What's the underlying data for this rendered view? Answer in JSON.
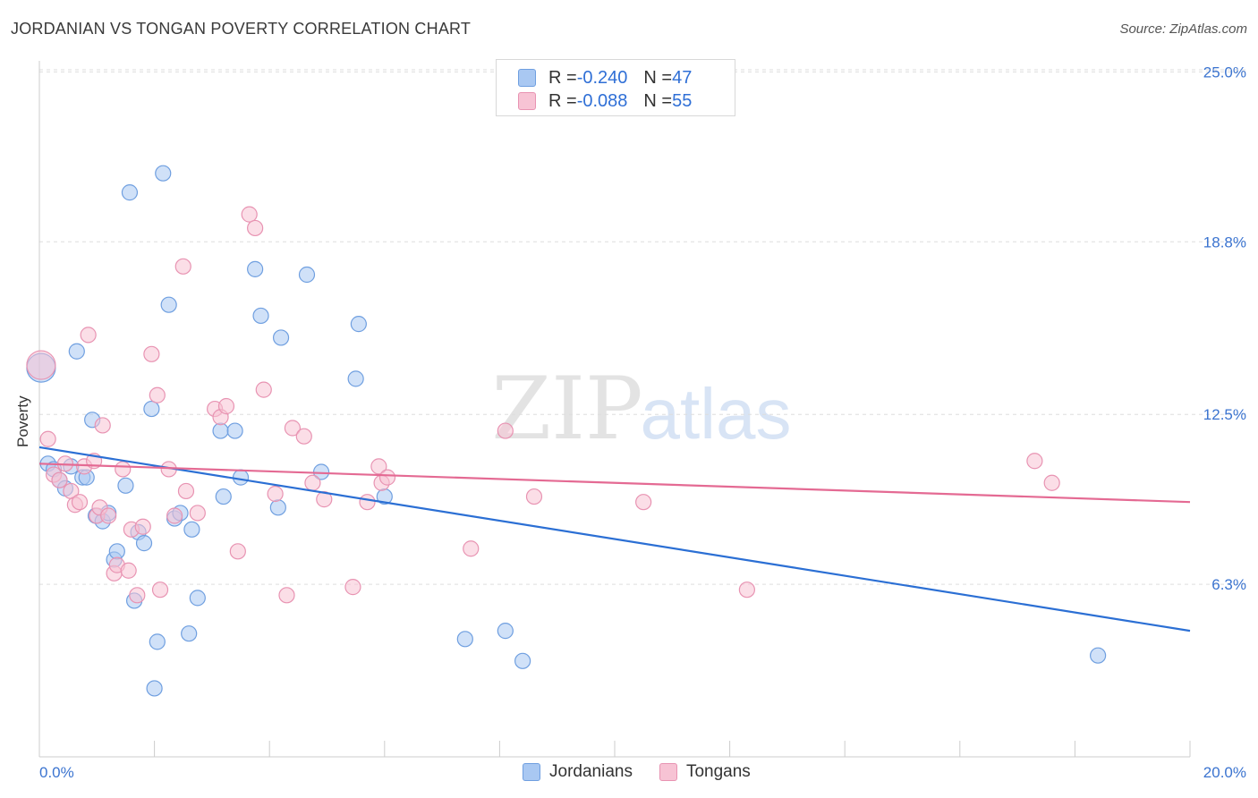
{
  "title": "JORDANIAN VS TONGAN POVERTY CORRELATION CHART",
  "source": "Source: ZipAtlas.com",
  "colors": {
    "jordanians_fill": "#a9c8f2",
    "jordanians_stroke": "#6f9fe0",
    "jordanians_line": "#2b6fd4",
    "tongans_fill": "#f7c3d4",
    "tongans_stroke": "#e893b2",
    "tongans_line": "#e46a93",
    "tick_label": "#3b74d0",
    "grid": "#dddddd"
  },
  "legend_top": {
    "rows": [
      {
        "r_label": "R = ",
        "r_value": "-0.240",
        "n_label": "N = ",
        "n_value": "47"
      },
      {
        "r_label": "R = ",
        "r_value": "-0.088",
        "n_label": "N = ",
        "n_value": "55"
      }
    ]
  },
  "chart_data": {
    "type": "scatter",
    "title": "JORDANIAN VS TONGAN POVERTY CORRELATION CHART",
    "xlabel": "",
    "ylabel": "Poverty",
    "xlim": [
      0,
      20
    ],
    "ylim": [
      0,
      25.6
    ],
    "x_tick_labels": [
      "0.0%",
      "20.0%"
    ],
    "y_ticks": [
      6.3,
      12.5,
      18.8,
      25.0
    ],
    "y_tick_labels": [
      "6.3%",
      "12.5%",
      "18.8%",
      "25.0%"
    ],
    "grid": true,
    "watermark": "ZIPatlas",
    "legend_position": "bottom-center",
    "series": [
      {
        "name": "Jordanians",
        "r": -0.24,
        "n": 47,
        "trend": {
          "x": [
            0,
            20
          ],
          "y": [
            11.3,
            4.6
          ]
        },
        "points": [
          {
            "x": 0.03,
            "y": 14.2,
            "big": true
          },
          {
            "x": 0.15,
            "y": 10.7
          },
          {
            "x": 0.25,
            "y": 10.5
          },
          {
            "x": 0.35,
            "y": 10.1
          },
          {
            "x": 0.45,
            "y": 9.8
          },
          {
            "x": 0.55,
            "y": 10.6
          },
          {
            "x": 0.65,
            "y": 14.8
          },
          {
            "x": 0.75,
            "y": 10.2
          },
          {
            "x": 0.82,
            "y": 10.2
          },
          {
            "x": 0.92,
            "y": 12.3
          },
          {
            "x": 0.98,
            "y": 8.8
          },
          {
            "x": 1.1,
            "y": 8.6
          },
          {
            "x": 1.2,
            "y": 8.9
          },
          {
            "x": 1.3,
            "y": 7.2
          },
          {
            "x": 1.35,
            "y": 7.5
          },
          {
            "x": 1.5,
            "y": 9.9
          },
          {
            "x": 1.57,
            "y": 20.6
          },
          {
            "x": 1.65,
            "y": 5.7
          },
          {
            "x": 1.72,
            "y": 8.2
          },
          {
            "x": 1.82,
            "y": 7.8
          },
          {
            "x": 1.95,
            "y": 12.7
          },
          {
            "x": 2.05,
            "y": 4.2
          },
          {
            "x": 2.0,
            "y": 2.5
          },
          {
            "x": 2.15,
            "y": 21.3
          },
          {
            "x": 2.25,
            "y": 16.5
          },
          {
            "x": 2.35,
            "y": 8.7
          },
          {
            "x": 2.45,
            "y": 8.9
          },
          {
            "x": 2.6,
            "y": 4.5
          },
          {
            "x": 2.65,
            "y": 8.3
          },
          {
            "x": 2.75,
            "y": 5.8
          },
          {
            "x": 3.15,
            "y": 11.9
          },
          {
            "x": 3.2,
            "y": 9.5
          },
          {
            "x": 3.4,
            "y": 11.9
          },
          {
            "x": 3.5,
            "y": 10.2
          },
          {
            "x": 3.75,
            "y": 17.8
          },
          {
            "x": 3.85,
            "y": 16.1
          },
          {
            "x": 4.2,
            "y": 15.3
          },
          {
            "x": 4.15,
            "y": 9.1
          },
          {
            "x": 4.65,
            "y": 17.6
          },
          {
            "x": 4.9,
            "y": 10.4
          },
          {
            "x": 5.5,
            "y": 13.8
          },
          {
            "x": 5.55,
            "y": 15.8
          },
          {
            "x": 6.0,
            "y": 9.5
          },
          {
            "x": 7.4,
            "y": 4.3
          },
          {
            "x": 8.1,
            "y": 4.6
          },
          {
            "x": 8.4,
            "y": 3.5
          },
          {
            "x": 18.4,
            "y": 3.7
          }
        ]
      },
      {
        "name": "Tongans",
        "r": -0.088,
        "n": 55,
        "trend": {
          "x": [
            0,
            20
          ],
          "y": [
            10.7,
            9.3
          ]
        },
        "points": [
          {
            "x": 0.03,
            "y": 14.3,
            "big": true
          },
          {
            "x": 0.15,
            "y": 11.6
          },
          {
            "x": 0.25,
            "y": 10.3
          },
          {
            "x": 0.35,
            "y": 10.1
          },
          {
            "x": 0.45,
            "y": 10.7
          },
          {
            "x": 0.55,
            "y": 9.7
          },
          {
            "x": 0.62,
            "y": 9.2
          },
          {
            "x": 0.7,
            "y": 9.3
          },
          {
            "x": 0.78,
            "y": 10.6
          },
          {
            "x": 0.85,
            "y": 15.4
          },
          {
            "x": 0.95,
            "y": 10.8
          },
          {
            "x": 1.0,
            "y": 8.8
          },
          {
            "x": 1.05,
            "y": 9.1
          },
          {
            "x": 1.1,
            "y": 12.1
          },
          {
            "x": 1.2,
            "y": 8.8
          },
          {
            "x": 1.3,
            "y": 6.7
          },
          {
            "x": 1.35,
            "y": 7.0
          },
          {
            "x": 1.45,
            "y": 10.5
          },
          {
            "x": 1.55,
            "y": 6.8
          },
          {
            "x": 1.6,
            "y": 8.3
          },
          {
            "x": 1.7,
            "y": 5.9
          },
          {
            "x": 1.8,
            "y": 8.4
          },
          {
            "x": 1.95,
            "y": 14.7
          },
          {
            "x": 2.05,
            "y": 13.2
          },
          {
            "x": 2.1,
            "y": 6.1
          },
          {
            "x": 2.25,
            "y": 10.5
          },
          {
            "x": 2.35,
            "y": 8.8
          },
          {
            "x": 2.5,
            "y": 17.9
          },
          {
            "x": 2.55,
            "y": 9.7
          },
          {
            "x": 2.75,
            "y": 8.9
          },
          {
            "x": 3.05,
            "y": 12.7
          },
          {
            "x": 3.15,
            "y": 12.4
          },
          {
            "x": 3.25,
            "y": 12.8
          },
          {
            "x": 3.45,
            "y": 7.5
          },
          {
            "x": 3.65,
            "y": 19.8
          },
          {
            "x": 3.75,
            "y": 19.3
          },
          {
            "x": 3.9,
            "y": 13.4
          },
          {
            "x": 4.1,
            "y": 9.6
          },
          {
            "x": 4.3,
            "y": 5.9
          },
          {
            "x": 4.4,
            "y": 12.0
          },
          {
            "x": 4.6,
            "y": 11.7
          },
          {
            "x": 4.75,
            "y": 10.0
          },
          {
            "x": 4.95,
            "y": 9.4
          },
          {
            "x": 5.45,
            "y": 6.2
          },
          {
            "x": 5.7,
            "y": 9.3
          },
          {
            "x": 5.9,
            "y": 10.6
          },
          {
            "x": 5.95,
            "y": 10.0
          },
          {
            "x": 6.05,
            "y": 10.2
          },
          {
            "x": 7.5,
            "y": 7.6
          },
          {
            "x": 8.1,
            "y": 11.9
          },
          {
            "x": 8.6,
            "y": 9.5
          },
          {
            "x": 10.5,
            "y": 9.3
          },
          {
            "x": 12.3,
            "y": 6.1
          },
          {
            "x": 17.3,
            "y": 10.8
          },
          {
            "x": 17.6,
            "y": 10.0
          }
        ]
      }
    ]
  }
}
